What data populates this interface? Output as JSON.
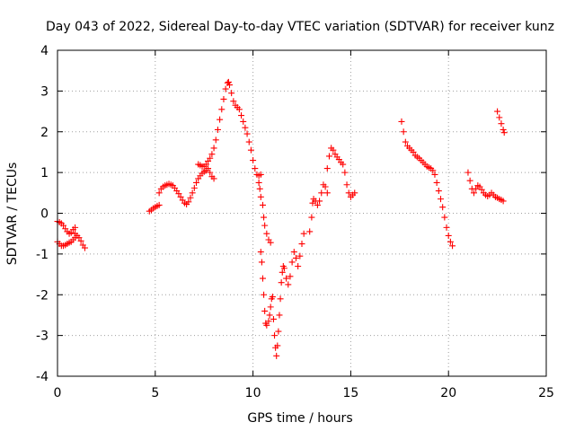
{
  "chart_data": {
    "type": "scatter",
    "title": "Day 043 of 2022, Sidereal Day-to-day VTEC variation (SDTVAR) for receiver kunz",
    "xlabel": "GPS time / hours",
    "ylabel": "SDTVAR / TECUs",
    "xlim": [
      0,
      25
    ],
    "ylim": [
      -4,
      4
    ],
    "x_ticks": [
      0,
      5,
      10,
      15,
      20,
      25
    ],
    "y_ticks": [
      -4,
      -3,
      -2,
      -1,
      0,
      1,
      2,
      3,
      4
    ],
    "x_tick_labels": [
      "0",
      "5",
      "10",
      "15",
      "20",
      "25"
    ],
    "y_tick_labels": [
      "-4",
      "-3",
      "-2",
      "-1",
      "0",
      "1",
      "2",
      "3",
      "4"
    ],
    "grid": true,
    "marker": "+",
    "color": "#ff0000",
    "series": [
      {
        "points": [
          [
            0.0,
            -0.7
          ],
          [
            0.1,
            -0.75
          ],
          [
            0.2,
            -0.8
          ],
          [
            0.3,
            -0.8
          ],
          [
            0.4,
            -0.78
          ],
          [
            0.5,
            -0.75
          ],
          [
            0.6,
            -0.72
          ],
          [
            0.7,
            -0.7
          ],
          [
            0.8,
            -0.65
          ],
          [
            0.9,
            -0.6
          ]
        ]
      },
      {
        "points": [
          [
            0.0,
            -0.2
          ],
          [
            0.1,
            -0.22
          ],
          [
            0.2,
            -0.25
          ],
          [
            0.3,
            -0.3
          ],
          [
            0.4,
            -0.38
          ],
          [
            0.5,
            -0.45
          ],
          [
            0.6,
            -0.5
          ],
          [
            0.7,
            -0.48
          ],
          [
            0.8,
            -0.4
          ],
          [
            0.9,
            -0.35
          ]
        ]
      },
      {
        "points": [
          [
            0.9,
            -0.5
          ],
          [
            1.0,
            -0.55
          ],
          [
            1.1,
            -0.6
          ],
          [
            1.2,
            -0.68
          ],
          [
            1.3,
            -0.78
          ],
          [
            1.4,
            -0.85
          ]
        ]
      },
      {
        "points": [
          [
            4.7,
            0.05
          ],
          [
            4.8,
            0.08
          ],
          [
            4.9,
            0.12
          ],
          [
            5.0,
            0.15
          ],
          [
            5.1,
            0.18
          ],
          [
            5.2,
            0.2
          ]
        ]
      },
      {
        "points": [
          [
            5.2,
            0.5
          ],
          [
            5.3,
            0.6
          ],
          [
            5.4,
            0.65
          ],
          [
            5.5,
            0.68
          ],
          [
            5.6,
            0.7
          ],
          [
            5.7,
            0.72
          ],
          [
            5.8,
            0.7
          ],
          [
            5.9,
            0.68
          ],
          [
            6.0,
            0.62
          ],
          [
            6.1,
            0.55
          ],
          [
            6.2,
            0.48
          ],
          [
            6.3,
            0.4
          ],
          [
            6.4,
            0.32
          ],
          [
            6.5,
            0.25
          ],
          [
            6.6,
            0.22
          ],
          [
            6.7,
            0.28
          ],
          [
            6.8,
            0.38
          ],
          [
            6.9,
            0.5
          ],
          [
            7.0,
            0.62
          ],
          [
            7.1,
            0.75
          ],
          [
            7.2,
            0.85
          ],
          [
            7.3,
            0.92
          ],
          [
            7.4,
            0.98
          ],
          [
            7.5,
            1.02
          ],
          [
            7.6,
            1.05
          ],
          [
            7.7,
            1.1
          ],
          [
            7.8,
            1.0
          ],
          [
            7.9,
            0.9
          ],
          [
            8.0,
            0.85
          ]
        ]
      },
      {
        "points": [
          [
            7.2,
            1.2
          ],
          [
            7.3,
            1.18
          ],
          [
            7.4,
            1.15
          ],
          [
            7.5,
            1.15
          ],
          [
            7.6,
            1.2
          ],
          [
            7.7,
            1.28
          ],
          [
            7.8,
            1.35
          ],
          [
            7.9,
            1.45
          ],
          [
            8.0,
            1.6
          ],
          [
            8.1,
            1.8
          ],
          [
            8.2,
            2.05
          ],
          [
            8.3,
            2.3
          ],
          [
            8.4,
            2.55
          ],
          [
            8.5,
            2.8
          ],
          [
            8.6,
            3.05
          ],
          [
            8.7,
            3.2
          ],
          [
            8.75,
            3.22
          ],
          [
            8.8,
            3.15
          ],
          [
            8.9,
            2.95
          ],
          [
            9.0,
            2.75
          ],
          [
            9.1,
            2.65
          ],
          [
            9.2,
            2.6
          ],
          [
            9.3,
            2.55
          ],
          [
            9.4,
            2.4
          ],
          [
            9.5,
            2.25
          ],
          [
            9.6,
            2.1
          ],
          [
            9.7,
            1.95
          ],
          [
            9.8,
            1.75
          ],
          [
            9.9,
            1.55
          ],
          [
            10.0,
            1.3
          ],
          [
            10.1,
            1.1
          ],
          [
            10.2,
            0.95
          ],
          [
            10.3,
            0.92
          ],
          [
            10.4,
            0.95
          ]
        ]
      },
      {
        "points": [
          [
            10.3,
            0.75
          ],
          [
            10.35,
            0.6
          ],
          [
            10.4,
            0.4
          ],
          [
            10.5,
            0.2
          ],
          [
            10.55,
            -0.1
          ],
          [
            10.6,
            -0.3
          ],
          [
            10.7,
            -0.5
          ],
          [
            10.8,
            -0.65
          ],
          [
            10.9,
            -0.72
          ]
        ]
      },
      {
        "points": [
          [
            10.4,
            -0.95
          ],
          [
            10.45,
            -1.2
          ],
          [
            10.5,
            -1.6
          ],
          [
            10.55,
            -2.0
          ],
          [
            10.6,
            -2.4
          ],
          [
            10.65,
            -2.7
          ],
          [
            10.7,
            -2.75
          ],
          [
            10.8,
            -2.65
          ],
          [
            10.85,
            -2.5
          ],
          [
            10.9,
            -2.3
          ],
          [
            10.95,
            -2.1
          ],
          [
            11.0,
            -2.05
          ],
          [
            11.05,
            -2.6
          ],
          [
            11.1,
            -3.0
          ],
          [
            11.15,
            -3.3
          ],
          [
            11.2,
            -3.5
          ],
          [
            11.25,
            -3.25
          ],
          [
            11.3,
            -2.9
          ],
          [
            11.35,
            -2.5
          ],
          [
            11.4,
            -2.1
          ],
          [
            11.45,
            -1.7
          ],
          [
            11.5,
            -1.45
          ],
          [
            11.55,
            -1.3
          ]
        ]
      },
      {
        "points": [
          [
            11.6,
            -1.35
          ],
          [
            11.7,
            -1.6
          ],
          [
            11.8,
            -1.75
          ],
          [
            11.9,
            -1.55
          ],
          [
            12.0,
            -1.2
          ],
          [
            12.1,
            -0.95
          ],
          [
            12.2,
            -1.1
          ],
          [
            12.3,
            -1.3
          ],
          [
            12.4,
            -1.05
          ],
          [
            12.5,
            -0.75
          ],
          [
            12.6,
            -0.5
          ]
        ]
      },
      {
        "points": [
          [
            12.9,
            -0.45
          ],
          [
            13.0,
            -0.1
          ],
          [
            13.05,
            0.25
          ],
          [
            13.1,
            0.35
          ],
          [
            13.2,
            0.3
          ],
          [
            13.3,
            0.2
          ],
          [
            13.4,
            0.3
          ],
          [
            13.5,
            0.5
          ],
          [
            13.6,
            0.7
          ],
          [
            13.7,
            0.65
          ],
          [
            13.8,
            0.5
          ]
        ]
      },
      {
        "points": [
          [
            13.8,
            1.1
          ],
          [
            13.9,
            1.4
          ],
          [
            14.0,
            1.6
          ],
          [
            14.1,
            1.55
          ],
          [
            14.2,
            1.45
          ],
          [
            14.3,
            1.38
          ],
          [
            14.4,
            1.32
          ],
          [
            14.5,
            1.25
          ],
          [
            14.6,
            1.2
          ],
          [
            14.7,
            1.0
          ],
          [
            14.8,
            0.7
          ],
          [
            14.9,
            0.5
          ],
          [
            15.0,
            0.4
          ],
          [
            15.1,
            0.45
          ],
          [
            15.2,
            0.5
          ]
        ]
      },
      {
        "points": [
          [
            17.6,
            2.25
          ],
          [
            17.7,
            2.0
          ],
          [
            17.8,
            1.75
          ],
          [
            17.9,
            1.65
          ],
          [
            18.0,
            1.6
          ],
          [
            18.1,
            1.55
          ],
          [
            18.2,
            1.5
          ],
          [
            18.3,
            1.42
          ],
          [
            18.4,
            1.38
          ],
          [
            18.5,
            1.35
          ],
          [
            18.6,
            1.3
          ],
          [
            18.7,
            1.25
          ],
          [
            18.8,
            1.2
          ],
          [
            18.9,
            1.15
          ],
          [
            19.0,
            1.12
          ],
          [
            19.1,
            1.1
          ],
          [
            19.2,
            1.05
          ],
          [
            19.3,
            0.95
          ],
          [
            19.4,
            0.75
          ],
          [
            19.5,
            0.55
          ],
          [
            19.6,
            0.35
          ],
          [
            19.7,
            0.15
          ],
          [
            19.8,
            -0.1
          ],
          [
            19.9,
            -0.35
          ],
          [
            20.0,
            -0.55
          ],
          [
            20.1,
            -0.7
          ],
          [
            20.2,
            -0.8
          ]
        ]
      },
      {
        "points": [
          [
            21.0,
            1.0
          ],
          [
            21.1,
            0.8
          ],
          [
            21.2,
            0.6
          ],
          [
            21.3,
            0.5
          ],
          [
            21.4,
            0.6
          ],
          [
            21.5,
            0.68
          ],
          [
            21.6,
            0.65
          ],
          [
            21.7,
            0.58
          ],
          [
            21.8,
            0.5
          ],
          [
            21.9,
            0.45
          ],
          [
            22.0,
            0.42
          ],
          [
            22.1,
            0.45
          ],
          [
            22.2,
            0.5
          ],
          [
            22.3,
            0.45
          ],
          [
            22.4,
            0.4
          ],
          [
            22.5,
            0.38
          ],
          [
            22.6,
            0.35
          ],
          [
            22.7,
            0.33
          ],
          [
            22.8,
            0.3
          ]
        ]
      },
      {
        "points": [
          [
            22.5,
            2.5
          ],
          [
            22.6,
            2.35
          ],
          [
            22.7,
            2.2
          ],
          [
            22.8,
            2.05
          ],
          [
            22.85,
            1.98
          ]
        ]
      }
    ]
  }
}
